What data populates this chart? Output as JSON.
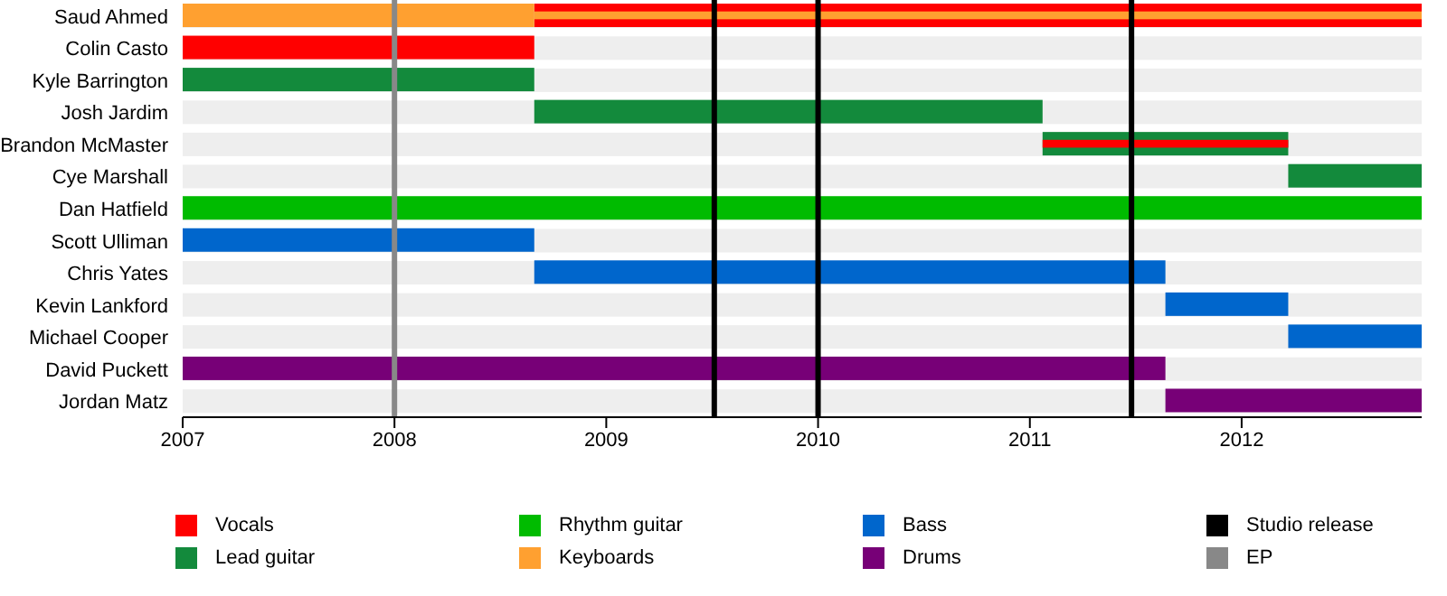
{
  "chart_data": {
    "type": "bar",
    "orientation": "horizontal",
    "legend": "bottom",
    "categories": [
      "Saud Ahmed",
      "Colin Casto",
      "Kyle Barrington",
      "Josh Jardim",
      "Brandon McMaster",
      "Cye Marshall",
      "Dan Hatfield",
      "Scott Ulliman",
      "Chris Yates",
      "Kevin Lankford",
      "Michael Cooper",
      "David Puckett",
      "Jordan Matz"
    ],
    "xlim": [
      2007,
      2012.85
    ],
    "xticks": [
      2007,
      2008,
      2009,
      2010,
      2011,
      2012
    ],
    "series": [
      {
        "name": "Vocals",
        "color": "#ff0000",
        "base": [
          2008.66,
          2007,
          null,
          null,
          null,
          null,
          null,
          null,
          null,
          null,
          null,
          null,
          null
        ],
        "values": [
          4.19,
          1.66,
          null,
          null,
          null,
          null,
          null,
          null,
          null,
          null,
          null,
          null,
          null
        ]
      },
      {
        "name": "Lead guitar",
        "color": "#138a3c",
        "base": [
          null,
          null,
          2007,
          2008.66,
          2011.06,
          2012.22,
          null,
          null,
          null,
          null,
          null,
          null,
          null
        ],
        "values": [
          null,
          null,
          1.66,
          2.4,
          1.16,
          0.63,
          null,
          null,
          null,
          null,
          null,
          null,
          null
        ]
      },
      {
        "name": "Rhythm guitar",
        "color": "#00bb00",
        "base": [
          null,
          null,
          null,
          null,
          null,
          null,
          2007,
          null,
          null,
          null,
          null,
          null,
          null
        ],
        "values": [
          null,
          null,
          null,
          null,
          null,
          null,
          5.85,
          null,
          null,
          null,
          null,
          null,
          null
        ]
      },
      {
        "name": "Keyboards",
        "color": "#ffa030",
        "base": [
          2007,
          null,
          null,
          null,
          null,
          null,
          null,
          null,
          null,
          null,
          null,
          null,
          null
        ],
        "values": [
          1.66,
          null,
          null,
          null,
          null,
          null,
          null,
          null,
          null,
          null,
          null,
          null,
          null
        ]
      },
      {
        "name": "Bass",
        "color": "#0066cc",
        "base": [
          null,
          null,
          null,
          null,
          null,
          null,
          null,
          2007,
          2008.66,
          2011.64,
          2012.22,
          null,
          null
        ],
        "values": [
          null,
          null,
          null,
          null,
          null,
          null,
          null,
          1.66,
          2.98,
          0.58,
          0.63,
          null,
          null
        ]
      },
      {
        "name": "Drums",
        "color": "#770077",
        "base": [
          null,
          null,
          null,
          null,
          null,
          null,
          null,
          null,
          null,
          null,
          null,
          2007,
          2011.64
        ],
        "values": [
          null,
          null,
          null,
          null,
          null,
          null,
          null,
          null,
          null,
          null,
          null,
          4.64,
          1.21
        ]
      },
      {
        "colors": [
          "#ffa030",
          null,
          null,
          null,
          "#ff0000",
          null,
          null,
          null,
          null,
          null,
          null,
          null,
          null
        ],
        "base": [
          2008.66,
          null,
          null,
          null,
          2011.06,
          null,
          null,
          null,
          null,
          null,
          null,
          null,
          null
        ],
        "values": [
          4.19,
          null,
          null,
          null,
          1.16,
          null,
          null,
          null,
          null,
          null,
          null,
          null,
          null
        ]
      }
    ],
    "ref_lines": [
      {
        "axis": "x",
        "value": 2009.51,
        "label": "Studio release",
        "color": "#000000"
      },
      {
        "axis": "x",
        "value": 2010,
        "color": "#000000"
      },
      {
        "axis": "x",
        "value": 2011.48,
        "color": "#000000"
      },
      {
        "axis": "x",
        "value": 2008,
        "label": "EP",
        "color": "#888888"
      }
    ]
  }
}
